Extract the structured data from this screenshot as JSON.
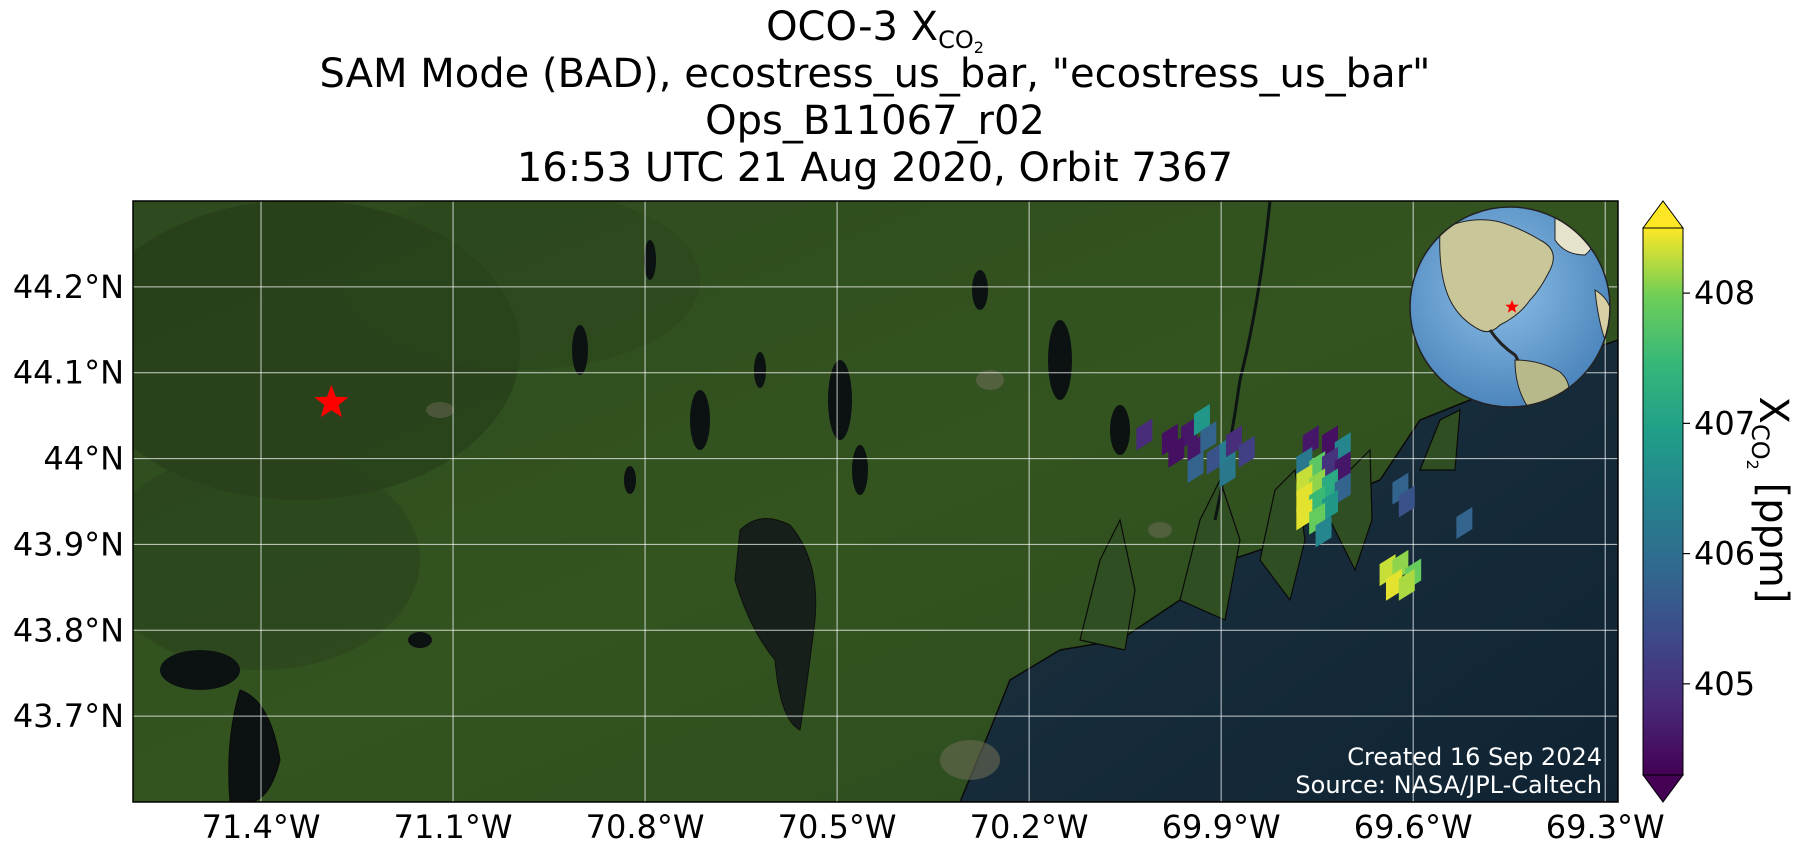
{
  "title": {
    "line1_main": "OCO-3 X",
    "line1_sub": "CO",
    "line1_subsub": "2",
    "line2": "SAM Mode (BAD), ecostress_us_bar, \"ecostress_us_bar\"",
    "line3": "Ops_B11067_r02",
    "line4": "16:53 UTC 21 Aug 2020, Orbit 7367"
  },
  "map": {
    "lon_range": [
      -71.6,
      -69.28
    ],
    "lat_range": [
      43.6,
      44.3
    ],
    "lat_ticks": [
      {
        "value": 44.2,
        "label": "44.2°N"
      },
      {
        "value": 44.1,
        "label": "44.1°N"
      },
      {
        "value": 44.0,
        "label": "44°N"
      },
      {
        "value": 43.9,
        "label": "43.9°N"
      },
      {
        "value": 43.8,
        "label": "43.8°N"
      },
      {
        "value": 43.7,
        "label": "43.7°N"
      }
    ],
    "lon_ticks": [
      {
        "value": -71.4,
        "label": "71.4°W"
      },
      {
        "value": -71.1,
        "label": "71.1°W"
      },
      {
        "value": -70.8,
        "label": "70.8°W"
      },
      {
        "value": -70.5,
        "label": "70.5°W"
      },
      {
        "value": -70.2,
        "label": "70.2°W"
      },
      {
        "value": -69.9,
        "label": "69.9°W"
      },
      {
        "value": -69.6,
        "label": "69.6°W"
      },
      {
        "value": -69.3,
        "label": "69.3°W"
      }
    ],
    "target_marker": {
      "lon": -71.29,
      "lat": 44.065,
      "color": "#ff0000"
    },
    "grid": true,
    "credit_line1": "Created 16 Sep 2024",
    "credit_line2": "Source: NASA/JPL-Caltech"
  },
  "inset_globe": {
    "marker_color": "#ff0000",
    "ocean_color": "#6aa3d4"
  },
  "colorbar": {
    "range": [
      404.3,
      408.5
    ],
    "ticks": [
      {
        "value": 405,
        "label": "405"
      },
      {
        "value": 406,
        "label": "406"
      },
      {
        "value": 407,
        "label": "407"
      },
      {
        "value": 408,
        "label": "408"
      }
    ],
    "label_main": "X",
    "label_sub": "CO",
    "label_subsub": "2",
    "label_unit": " [ppm]",
    "colormap": "viridis",
    "extend": "both"
  },
  "soundings": [
    {
      "lon": -70.02,
      "lat": 44.028,
      "xco2": 404.9
    },
    {
      "lon": -69.98,
      "lat": 44.022,
      "xco2": 404.5
    },
    {
      "lon": -69.95,
      "lat": 44.03,
      "xco2": 404.6
    },
    {
      "lon": -69.97,
      "lat": 44.008,
      "xco2": 404.5
    },
    {
      "lon": -69.94,
      "lat": 44.01,
      "xco2": 404.6
    },
    {
      "lon": -69.93,
      "lat": 44.045,
      "xco2": 406.8
    },
    {
      "lon": -69.92,
      "lat": 44.025,
      "xco2": 405.8
    },
    {
      "lon": -69.91,
      "lat": 44.0,
      "xco2": 405.5
    },
    {
      "lon": -69.89,
      "lat": 44.01,
      "xco2": 406.3
    },
    {
      "lon": -69.88,
      "lat": 44.02,
      "xco2": 404.9
    },
    {
      "lon": -69.86,
      "lat": 44.008,
      "xco2": 405.2
    },
    {
      "lon": -69.94,
      "lat": 43.99,
      "xco2": 405.8
    },
    {
      "lon": -69.89,
      "lat": 43.985,
      "xco2": 406.2
    },
    {
      "lon": -69.76,
      "lat": 44.02,
      "xco2": 404.6
    },
    {
      "lon": -69.73,
      "lat": 44.02,
      "xco2": 404.5
    },
    {
      "lon": -69.71,
      "lat": 44.012,
      "xco2": 406.5
    },
    {
      "lon": -69.77,
      "lat": 43.995,
      "xco2": 406.2
    },
    {
      "lon": -69.75,
      "lat": 43.99,
      "xco2": 407.8
    },
    {
      "lon": -69.73,
      "lat": 43.995,
      "xco2": 405.0
    },
    {
      "lon": -69.71,
      "lat": 43.99,
      "xco2": 404.6
    },
    {
      "lon": -69.77,
      "lat": 43.975,
      "xco2": 408.3
    },
    {
      "lon": -69.75,
      "lat": 43.97,
      "xco2": 408.1
    },
    {
      "lon": -69.73,
      "lat": 43.97,
      "xco2": 407.2
    },
    {
      "lon": -69.71,
      "lat": 43.965,
      "xco2": 405.8
    },
    {
      "lon": -69.77,
      "lat": 43.955,
      "xco2": 408.4
    },
    {
      "lon": -69.75,
      "lat": 43.95,
      "xco2": 407.5
    },
    {
      "lon": -69.73,
      "lat": 43.945,
      "xco2": 406.8
    },
    {
      "lon": -69.77,
      "lat": 43.935,
      "xco2": 408.4
    },
    {
      "lon": -69.75,
      "lat": 43.93,
      "xco2": 407.9
    },
    {
      "lon": -69.74,
      "lat": 43.915,
      "xco2": 406.5
    },
    {
      "lon": -69.62,
      "lat": 43.965,
      "xco2": 405.8
    },
    {
      "lon": -69.61,
      "lat": 43.95,
      "xco2": 405.5
    },
    {
      "lon": -69.52,
      "lat": 43.925,
      "xco2": 405.8
    },
    {
      "lon": -69.64,
      "lat": 43.87,
      "xco2": 408.3
    },
    {
      "lon": -69.62,
      "lat": 43.875,
      "xco2": 408.1
    },
    {
      "lon": -69.6,
      "lat": 43.865,
      "xco2": 407.9
    },
    {
      "lon": -69.63,
      "lat": 43.853,
      "xco2": 408.4
    },
    {
      "lon": -69.61,
      "lat": 43.853,
      "xco2": 408.2
    }
  ]
}
